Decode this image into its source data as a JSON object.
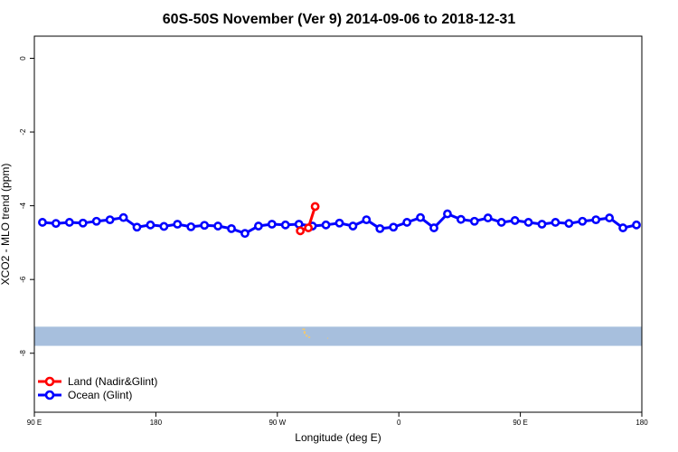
{
  "chart_data": {
    "type": "line",
    "title": "60S-50S November (Ver 9)   2014-09-06 to 2018-12-31",
    "xlabel": "Longitude (deg E)",
    "ylabel": "XCO2 - MLO trend (ppm)",
    "x_tick_labels": [
      "90 E",
      "180",
      "90 W",
      "0",
      "90 E",
      "180"
    ],
    "x_ticks": [
      90,
      180,
      270,
      360,
      450,
      540
    ],
    "y_ticks": [
      0,
      -2,
      -4,
      -6,
      -8
    ],
    "y_tick_labels": [
      "0",
      "-2",
      "-4",
      "-6",
      "-8"
    ],
    "xlim": [
      90,
      540
    ],
    "ylim": [
      -9.6,
      0.6
    ],
    "grid": false,
    "legend_position": "bottom-left",
    "colors": {
      "land": "#ff0000",
      "ocean": "#0000ff",
      "land_mask": "#f5c96a",
      "map_band": "#a7bfdd"
    },
    "map_band": {
      "y_range": [
        -7.28,
        -7.8
      ]
    },
    "series": [
      {
        "name": "Land (Nadir&Glint)",
        "color": "#ff0000",
        "x": [
          287,
          293,
          298
        ],
        "y": [
          -4.68,
          -4.6,
          -4.02
        ]
      },
      {
        "name": "Ocean (Glint)",
        "color": "#0000ff",
        "x": [
          96,
          106,
          116,
          126,
          136,
          146,
          156,
          166,
          176,
          186,
          196,
          206,
          216,
          226,
          236,
          246,
          256,
          266,
          276,
          286,
          296,
          306,
          316,
          326,
          336,
          346,
          356,
          366,
          376,
          386,
          396,
          406,
          416,
          426,
          436,
          446,
          456,
          466,
          476,
          486,
          496,
          506,
          516,
          526,
          536
        ],
        "y": [
          -4.45,
          -4.48,
          -4.45,
          -4.47,
          -4.42,
          -4.38,
          -4.32,
          -4.58,
          -4.52,
          -4.56,
          -4.5,
          -4.57,
          -4.53,
          -4.55,
          -4.62,
          -4.75,
          -4.55,
          -4.5,
          -4.52,
          -4.5,
          -4.55,
          -4.52,
          -4.47,
          -4.55,
          -4.38,
          -4.62,
          -4.58,
          -4.45,
          -4.32,
          -4.6,
          -4.22,
          -4.37,
          -4.42,
          -4.33,
          -4.45,
          -4.4,
          -4.45,
          -4.5,
          -4.45,
          -4.48,
          -4.42,
          -4.38,
          -4.33,
          -4.6,
          -4.52
        ]
      }
    ]
  }
}
